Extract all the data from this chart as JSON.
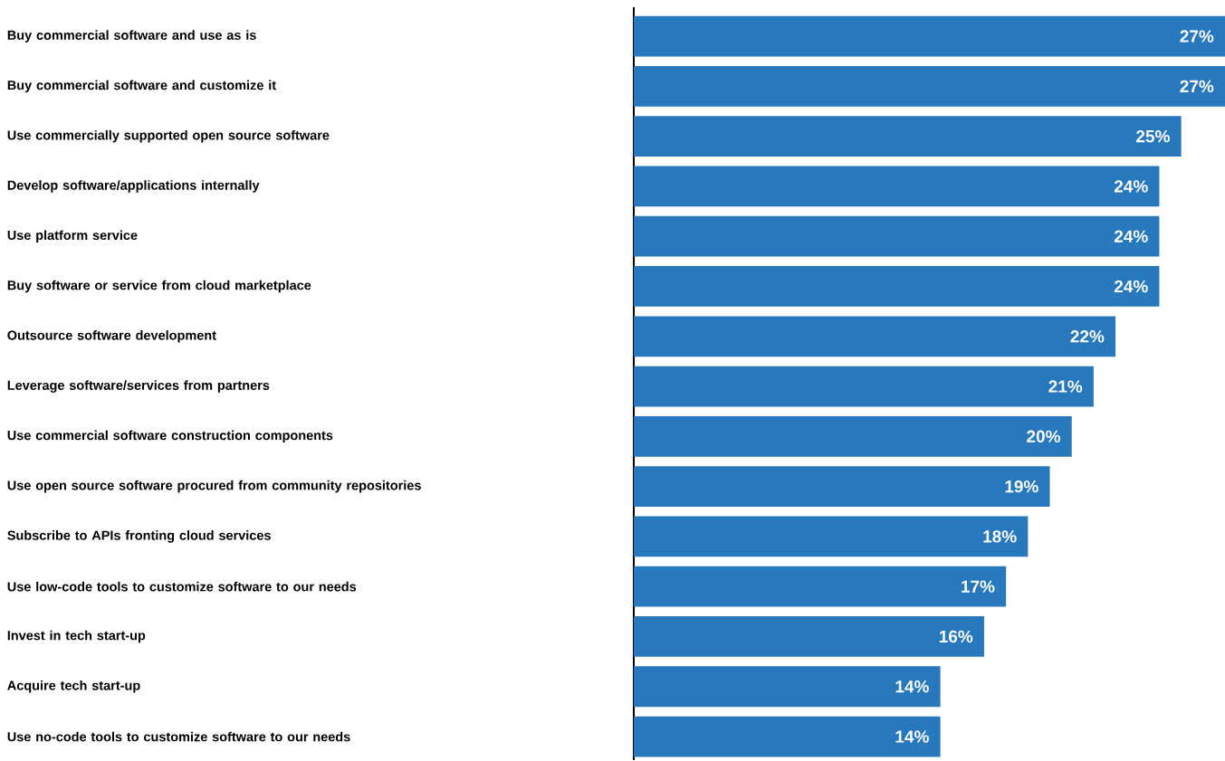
{
  "chart_data": {
    "type": "bar",
    "orientation": "horizontal",
    "color": "#2878bd",
    "categories": [
      "Buy commercial software and use as is",
      "Buy commercial software and customize it",
      "Use commercially supported open source software",
      "Develop software/applications internally",
      "Use platform service",
      "Buy software or service from cloud marketplace",
      "Outsource software development",
      "Leverage software/services from partners",
      "Use commercial software construction components",
      "Use open source software procured from community repositories",
      "Subscribe to APIs fronting cloud services",
      "Use low-code tools to customize software to our needs",
      "Invest in tech start-up",
      "Acquire tech start-up",
      "Use no-code tools to customize software to our needs"
    ],
    "values": [
      27,
      27,
      25,
      24,
      24,
      24,
      22,
      21,
      20,
      19,
      18,
      17,
      16,
      14,
      14
    ],
    "value_labels": [
      "27%",
      "27%",
      "25%",
      "24%",
      "24%",
      "24%",
      "22%",
      "21%",
      "20%",
      "19%",
      "18%",
      "17%",
      "16%",
      "14%",
      "14%"
    ]
  }
}
